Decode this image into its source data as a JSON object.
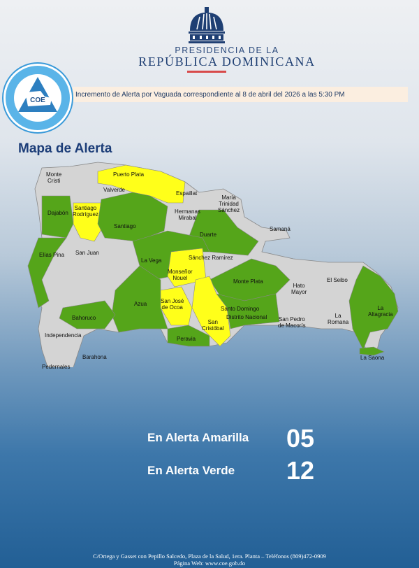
{
  "header": {
    "org_line1": "PRESIDENCIA DE LA",
    "org_line2": "REPÚBLICA DOMINICANA",
    "logo_text": "CENTRO DE OPERACIONES DE EMERGENCIAS · COE · REPÚBLICA DOMINICANA"
  },
  "banner": "Incremento de Alerta por Vaguada correspondiente al 8 de abril del 2026 a las 5:30 PM",
  "map_title": "Mapa de Alerta",
  "colors": {
    "yellow": "#ffff1a",
    "green": "#55a51a",
    "gray": "#d4d4d4"
  },
  "provinces": [
    {
      "name": "Monte\nCristi",
      "status": "none"
    },
    {
      "name": "Puerto Plata",
      "status": "yellow"
    },
    {
      "name": "Valverde",
      "status": "none"
    },
    {
      "name": "Espaillat",
      "status": "none"
    },
    {
      "name": "María\nTrinidad\nSánchez",
      "status": "none"
    },
    {
      "name": "Dajabón",
      "status": "green"
    },
    {
      "name": "Santiago\nRodríguez",
      "status": "yellow"
    },
    {
      "name": "Hermanas\nMirabal",
      "status": "none"
    },
    {
      "name": "Santiago",
      "status": "green"
    },
    {
      "name": "Samaná",
      "status": "none"
    },
    {
      "name": "Duarte",
      "status": "green"
    },
    {
      "name": "Elías Pina",
      "status": "green"
    },
    {
      "name": "San Juan",
      "status": "none"
    },
    {
      "name": "La Vega",
      "status": "green"
    },
    {
      "name": "Sánchez Ramírez",
      "status": "none"
    },
    {
      "name": "Monseñor\nNouel",
      "status": "yellow"
    },
    {
      "name": "Monte Plata",
      "status": "green"
    },
    {
      "name": "Hato\nMayor",
      "status": "none"
    },
    {
      "name": "El Seibo",
      "status": "none"
    },
    {
      "name": "Azua",
      "status": "green"
    },
    {
      "name": "San José\nde Ocoa",
      "status": "yellow"
    },
    {
      "name": "Santo Domingo",
      "status": "green"
    },
    {
      "name": "Distrito Nacional",
      "status": "green"
    },
    {
      "name": "La\nAltagracia",
      "status": "green"
    },
    {
      "name": "Bahoruco",
      "status": "green"
    },
    {
      "name": "San\nCristóbal",
      "status": "yellow"
    },
    {
      "name": "San Pedro\nde Macorís",
      "status": "none"
    },
    {
      "name": "La\nRomana",
      "status": "none"
    },
    {
      "name": "Independencia",
      "status": "none"
    },
    {
      "name": "Peravia",
      "status": "green"
    },
    {
      "name": "Barahona",
      "status": "none"
    },
    {
      "name": "La Saona",
      "status": "green"
    },
    {
      "name": "Pedernales",
      "status": "none"
    }
  ],
  "summary": [
    {
      "label": "En Alerta Amarilla",
      "count": "05"
    },
    {
      "label": "En Alerta Verde",
      "count": "12"
    }
  ],
  "footer": {
    "address": "C/Ortega y Gasset con Pepillo Salcedo, Plaza de la Salud, 1era. Planta – Teléfonos (809)472-0909",
    "web": "Página Web: www.coe.gob.do"
  }
}
